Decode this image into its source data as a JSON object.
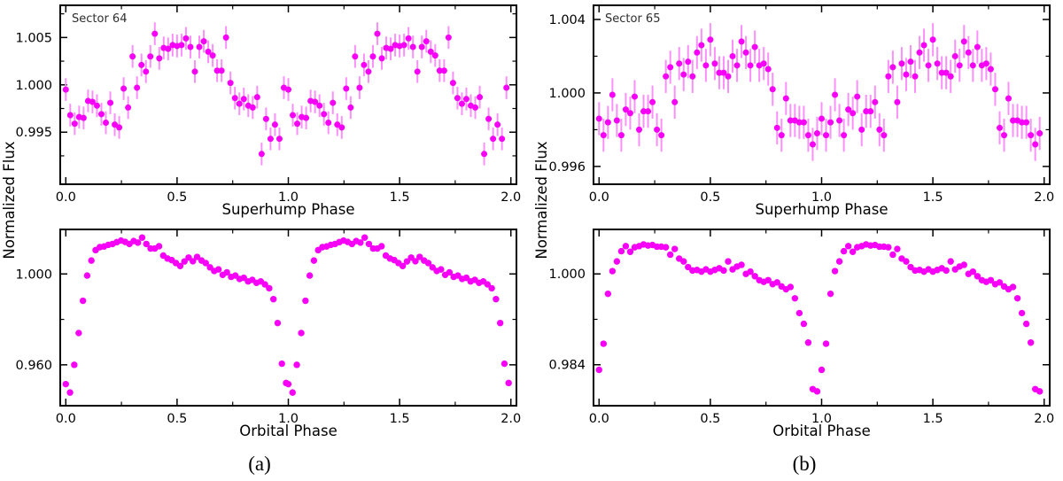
{
  "figure": {
    "background": "#ffffff",
    "marker_color": "#f700f7",
    "errorbar_color": "#fb90fb",
    "axis_color": "#000000",
    "annotation_color": "#2e2e2e",
    "captions": {
      "a": "(a)",
      "b": "(b)"
    }
  },
  "chart_data": [
    {
      "id": "sector64-superhump",
      "figure": "a",
      "type": "scatter",
      "annotation": "Sector 64",
      "xlabel": "Superhump Phase",
      "ylabel": "Normalized Flux",
      "xlim": [
        -0.025,
        2.025
      ],
      "ylim": [
        0.9895,
        1.0084
      ],
      "xtick_values": [
        0,
        0.5,
        1,
        1.5,
        2
      ],
      "xtick_labels": [
        "0.0",
        "0.5",
        "1.0",
        "1.5",
        "2.0"
      ],
      "ytick_values": [
        0.995,
        1.0,
        1.005
      ],
      "ytick_labels": [
        "0.995",
        "1.000",
        "1.005"
      ],
      "xminor": [
        0.25,
        0.75,
        1.25,
        1.75
      ],
      "yminor": [
        0.9925,
        0.9975,
        1.0025,
        1.0075
      ],
      "errorbar": 0.0012,
      "cycles_plotted": 2,
      "marker_radius": 3.5,
      "phase": [
        0,
        0.02,
        0.04,
        0.06,
        0.08,
        0.1,
        0.12,
        0.14,
        0.16,
        0.18,
        0.2,
        0.22,
        0.24,
        0.26,
        0.28,
        0.3,
        0.32,
        0.34,
        0.36,
        0.38,
        0.4,
        0.42,
        0.44,
        0.46,
        0.48,
        0.5,
        0.52,
        0.54,
        0.56,
        0.58,
        0.6,
        0.62,
        0.64,
        0.66,
        0.68,
        0.7,
        0.72,
        0.74,
        0.76,
        0.78,
        0.8,
        0.82,
        0.84,
        0.86,
        0.88,
        0.9,
        0.92,
        0.94,
        0.96,
        0.98
      ],
      "flux": [
        0.9995,
        0.9968,
        0.9959,
        0.9966,
        0.9965,
        0.9983,
        0.9982,
        0.9978,
        0.9969,
        0.996,
        0.9981,
        0.9958,
        0.9955,
        0.9996,
        0.9976,
        1.003,
        0.9997,
        1.0021,
        1.0014,
        1.003,
        1.0054,
        1.0028,
        1.0039,
        1.0038,
        1.0042,
        1.0041,
        1.0042,
        1.0049,
        1.004,
        1.0014,
        1.004,
        1.0046,
        1.0035,
        1.0031,
        1.0015,
        1.0015,
        1.005,
        1.0002,
        0.9986,
        0.998,
        0.9985,
        0.9978,
        0.9976,
        0.9987,
        0.9927,
        0.9964,
        0.9943,
        0.9958,
        0.9943,
        0.9997
      ]
    },
    {
      "id": "sector64-orbital",
      "figure": "a",
      "type": "scatter",
      "annotation": "",
      "xlabel": "Orbital Phase",
      "ylabel": "Normalized Flux",
      "xlim": [
        -0.025,
        2.025
      ],
      "ylim": [
        0.942,
        1.0196
      ],
      "xtick_values": [
        0,
        0.5,
        1,
        1.5,
        2
      ],
      "xtick_labels": [
        "0.0",
        "0.5",
        "1.0",
        "1.5",
        "2.0"
      ],
      "ytick_values": [
        0.96,
        1.0
      ],
      "ytick_labels": [
        "0.960",
        "1.000"
      ],
      "xminor": [
        0.25,
        0.75,
        1.25,
        1.75
      ],
      "yminor": [
        0.98
      ],
      "errorbar": 0,
      "cycles_plotted": 2,
      "marker_radius": 3.7,
      "phase": [
        0,
        0.019,
        0.038,
        0.058,
        0.077,
        0.096,
        0.115,
        0.134,
        0.153,
        0.172,
        0.191,
        0.21,
        0.229,
        0.248,
        0.267,
        0.286,
        0.305,
        0.324,
        0.343,
        0.362,
        0.381,
        0.4,
        0.419,
        0.438,
        0.457,
        0.476,
        0.495,
        0.514,
        0.533,
        0.552,
        0.571,
        0.59,
        0.61,
        0.629,
        0.648,
        0.667,
        0.686,
        0.705,
        0.724,
        0.743,
        0.762,
        0.781,
        0.8,
        0.819,
        0.838,
        0.857,
        0.876,
        0.895,
        0.914,
        0.933,
        0.952,
        0.971,
        0.99
      ],
      "flux": [
        0.9515,
        0.9478,
        0.96,
        0.974,
        0.9882,
        0.9993,
        1.0059,
        1.0105,
        1.0118,
        1.0121,
        1.0128,
        1.0132,
        1.014,
        1.0147,
        1.0141,
        1.0132,
        1.0145,
        1.0138,
        1.016,
        1.0132,
        1.0112,
        1.0112,
        1.0122,
        1.0081,
        1.0068,
        1.0061,
        1.0048,
        1.0035,
        1.0055,
        1.0072,
        1.0056,
        1.0075,
        1.0059,
        1.0048,
        1.0029,
        1.0013,
        1.002,
        0.9996,
        1.0007,
        0.9987,
        0.9993,
        0.9978,
        0.9983,
        0.9967,
        0.9974,
        0.9961,
        0.9967,
        0.9954,
        0.9937,
        0.9889,
        0.9784,
        0.9605,
        0.952
      ]
    },
    {
      "id": "sector65-superhump",
      "figure": "b",
      "type": "scatter",
      "annotation": "Sector 65",
      "xlabel": "Superhump Phase",
      "ylabel": "Normalized Flux",
      "xlim": [
        -0.025,
        2.025
      ],
      "ylim": [
        0.99503,
        1.00477
      ],
      "xtick_values": [
        0,
        0.5,
        1,
        1.5,
        2
      ],
      "xtick_labels": [
        "0.0",
        "0.5",
        "1.0",
        "1.5",
        "2.0"
      ],
      "ytick_values": [
        0.996,
        1.0,
        1.004
      ],
      "ytick_labels": [
        "0.996",
        "1.000",
        "1.004"
      ],
      "xminor": [
        0.25,
        0.75,
        1.25,
        1.75
      ],
      "yminor": [
        0.998,
        1.002
      ],
      "errorbar": 0.0009,
      "cycles_plotted": 2,
      "marker_radius": 3.5,
      "phase": [
        0,
        0.02,
        0.04,
        0.06,
        0.08,
        0.1,
        0.12,
        0.14,
        0.16,
        0.18,
        0.2,
        0.22,
        0.24,
        0.26,
        0.28,
        0.3,
        0.32,
        0.34,
        0.36,
        0.38,
        0.4,
        0.42,
        0.44,
        0.46,
        0.48,
        0.5,
        0.52,
        0.54,
        0.56,
        0.58,
        0.6,
        0.62,
        0.64,
        0.66,
        0.68,
        0.7,
        0.72,
        0.74,
        0.76,
        0.78,
        0.8,
        0.82,
        0.84,
        0.86,
        0.88,
        0.9,
        0.92,
        0.94,
        0.96,
        0.98
      ],
      "flux": [
        0.9986,
        0.9977,
        0.9984,
        0.9999,
        0.9985,
        0.9977,
        0.9991,
        0.9989,
        0.9998,
        0.998,
        0.999,
        0.999,
        0.9995,
        0.998,
        0.9977,
        1.0009,
        1.0014,
        0.9995,
        1.0016,
        1.001,
        1.0017,
        1.0009,
        1.0022,
        1.0026,
        1.0015,
        1.0029,
        1.0016,
        1.0011,
        1.0011,
        1.0009,
        1.002,
        1.0015,
        1.0028,
        1.0022,
        1.0015,
        1.0025,
        1.0015,
        1.0016,
        1.0013,
        1.0002,
        0.9981,
        0.9977,
        0.9997,
        0.9985,
        0.9985,
        0.9984,
        0.9984,
        0.9977,
        0.9972,
        0.9978
      ]
    },
    {
      "id": "sector65-orbital",
      "figure": "b",
      "type": "scatter",
      "annotation": "",
      "xlabel": "Orbital Phase",
      "ylabel": "Normalized Flux",
      "xlim": [
        -0.025,
        2.025
      ],
      "ylim": [
        0.97678,
        1.00784
      ],
      "xtick_values": [
        0,
        0.5,
        1,
        1.5,
        2
      ],
      "xtick_labels": [
        "0.0",
        "0.5",
        "1.0",
        "1.5",
        "2.0"
      ],
      "ytick_values": [
        0.984,
        1.0
      ],
      "ytick_labels": [
        "0.984",
        "1.000"
      ],
      "xminor": [
        0.25,
        0.75,
        1.25,
        1.75
      ],
      "yminor": [
        0.992
      ],
      "errorbar": 0,
      "cycles_plotted": 2,
      "marker_radius": 3.7,
      "phase": [
        0,
        0.02,
        0.04,
        0.06,
        0.08,
        0.1,
        0.12,
        0.14,
        0.16,
        0.18,
        0.2,
        0.22,
        0.24,
        0.26,
        0.28,
        0.3,
        0.32,
        0.34,
        0.36,
        0.38,
        0.4,
        0.42,
        0.44,
        0.46,
        0.48,
        0.5,
        0.52,
        0.54,
        0.56,
        0.58,
        0.6,
        0.62,
        0.64,
        0.66,
        0.68,
        0.7,
        0.72,
        0.74,
        0.76,
        0.78,
        0.8,
        0.82,
        0.84,
        0.86,
        0.88,
        0.9,
        0.92,
        0.94,
        0.96,
        0.98
      ],
      "flux": [
        0.9831,
        0.9877,
        0.9965,
        1.0005,
        1.0022,
        1.004,
        1.0049,
        1.0039,
        1.0047,
        1.0049,
        1.0052,
        1.005,
        1.0051,
        1.0048,
        1.0048,
        1.0047,
        1.0034,
        1.0044,
        1.0027,
        1.0022,
        1.0012,
        1.0006,
        1.0007,
        1.0004,
        1.0008,
        1.0004,
        1.0007,
        1.001,
        1.0006,
        1.0022,
        1.0008,
        1.0013,
        1.0016,
        1.0,
        1.0004,
        0.9996,
        0.9989,
        0.9986,
        0.9989,
        0.9982,
        0.9985,
        0.9978,
        0.9973,
        0.9977,
        0.9957,
        0.9931,
        0.9912,
        0.9879,
        0.9797,
        0.9793
      ]
    }
  ]
}
